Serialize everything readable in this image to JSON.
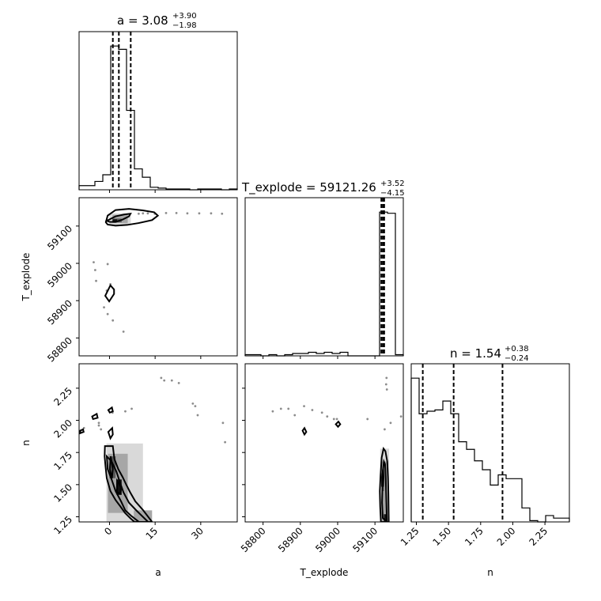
{
  "chart_data": {
    "type": "corner",
    "parameters": [
      "a",
      "T_explode",
      "n"
    ],
    "axis_labels": {
      "a": "a",
      "T_explode": "T_explode",
      "n": "n"
    },
    "titles": {
      "a": {
        "lead": "a = 3.08",
        "sup": "+3.90",
        "sub": "−1.98"
      },
      "T_explode": {
        "lead": "T_explode = 59121.26",
        "sup": "+3.52",
        "sub": "−4.15"
      },
      "n": {
        "lead": "n = 1.54",
        "sup": "+0.38",
        "sub": "−0.24"
      }
    },
    "ranges": {
      "a": [
        -10,
        42
      ],
      "T_explode": [
        58752,
        59176
      ],
      "n": [
        1.21,
        2.44
      ]
    },
    "ticks": {
      "a": {
        "values": [
          0,
          15,
          30
        ],
        "labels": [
          "0",
          "15",
          "30"
        ]
      },
      "T_explode": {
        "values": [
          58800,
          58900,
          59000,
          59100
        ],
        "labels": [
          "58800",
          "58900",
          "59000",
          "59100"
        ]
      },
      "n": {
        "values": [
          1.25,
          1.5,
          1.75,
          2.0,
          2.25
        ],
        "labels": [
          "1.25",
          "1.50",
          "1.75",
          "2.00",
          "2.25"
        ]
      }
    },
    "quantiles": {
      "a": [
        1.1,
        3.08,
        6.98
      ],
      "T_explode": [
        59117.11,
        59121.26,
        59124.78
      ],
      "n": [
        1.3,
        1.54,
        1.92
      ]
    },
    "histograms": {
      "a": {
        "edges": [
          -10,
          -7.4,
          -4.8,
          -2.2,
          0.4,
          3.0,
          5.6,
          8.2,
          10.8,
          13.4,
          16.0,
          18.6,
          21.2,
          23.8,
          26.4,
          29.0,
          31.6,
          34.2,
          36.8,
          39.4,
          42.0
        ],
        "counts": [
          5,
          5,
          10,
          18,
          172,
          168,
          95,
          25,
          15,
          3,
          2,
          1,
          1,
          1,
          0,
          1,
          1,
          1,
          0,
          1
        ]
      },
      "T_explode": {
        "edges": [
          58752,
          58773.2,
          58794.4,
          58815.6,
          58836.8,
          58858,
          58879.2,
          58900.4,
          58921.6,
          58942.8,
          58964,
          58985.2,
          59006.4,
          59027.6,
          59048.8,
          59070,
          59091.2,
          59112.4,
          59133.6,
          59154.8,
          59176
        ],
        "counts": [
          2,
          2,
          0,
          2,
          0,
          2,
          4,
          4,
          6,
          4,
          6,
          4,
          6,
          0,
          0,
          0,
          0,
          244,
          242,
          2
        ]
      },
      "n": {
        "edges": [
          1.21,
          1.2715,
          1.333,
          1.3945,
          1.456,
          1.5175,
          1.579,
          1.6405,
          1.702,
          1.7635,
          1.825,
          1.8865,
          1.948,
          2.0095,
          2.071,
          2.1325,
          2.194,
          2.2555,
          2.317,
          2.3785,
          2.44
        ],
        "counts": [
          113,
          85,
          87,
          88,
          95,
          85,
          63,
          57,
          48,
          41,
          29,
          37,
          34,
          34,
          11,
          1,
          0,
          5,
          3,
          3
        ]
      }
    },
    "scatter": {
      "T_explode_vs_a": [
        [
          -5.2,
          59003
        ],
        [
          -4.7,
          58982
        ],
        [
          -4.4,
          58953
        ],
        [
          -0.6,
          58998
        ],
        [
          0.3,
          58944
        ],
        [
          1.1,
          58847
        ],
        [
          -0.9,
          58927
        ],
        [
          -1.8,
          58882
        ],
        [
          -0.6,
          58864
        ],
        [
          4.6,
          58817
        ],
        [
          11.0,
          59134
        ],
        [
          14.9,
          59133
        ],
        [
          18.6,
          59135
        ],
        [
          22.0,
          59135
        ],
        [
          25.6,
          59134
        ],
        [
          29.5,
          59134
        ],
        [
          33.4,
          59134
        ],
        [
          37.0,
          59133
        ],
        [
          9.6,
          59133
        ],
        [
          12.6,
          59134
        ]
      ],
      "n_vs_a": [
        [
          -3.5,
          1.98
        ],
        [
          -3.5,
          1.96
        ],
        [
          -2.8,
          1.93
        ],
        [
          1.0,
          2.06
        ],
        [
          5.2,
          2.07
        ],
        [
          7.3,
          2.09
        ],
        [
          17.0,
          2.33
        ],
        [
          18.0,
          2.31
        ],
        [
          20.5,
          2.31
        ],
        [
          22.8,
          2.29
        ],
        [
          27.4,
          2.13
        ],
        [
          28.2,
          2.11
        ],
        [
          29.0,
          2.04
        ],
        [
          37.3,
          1.98
        ],
        [
          38.0,
          1.83
        ],
        [
          -8.4,
          1.94
        ]
      ],
      "n_vs_T_explode": [
        [
          58826,
          2.07
        ],
        [
          58848,
          2.09
        ],
        [
          58868,
          2.09
        ],
        [
          58885,
          2.04
        ],
        [
          58910,
          2.11
        ],
        [
          58932,
          2.08
        ],
        [
          58958,
          2.06
        ],
        [
          58972,
          2.03
        ],
        [
          58990,
          2.01
        ],
        [
          58998,
          2.01
        ],
        [
          59130,
          2.28
        ],
        [
          59131,
          2.33
        ],
        [
          59132,
          2.24
        ],
        [
          59126,
          1.93
        ],
        [
          59170,
          2.03
        ],
        [
          59080,
          2.01
        ],
        [
          59142,
          1.98
        ]
      ]
    },
    "contours": {
      "T_explode_vs_a": [
        {
          "level": "outer",
          "points": [
            [
              -1.2,
              59110
            ],
            [
              -0.6,
              59128
            ],
            [
              2.0,
              59143
            ],
            [
              6.4,
              59146
            ],
            [
              10.9,
              59142
            ],
            [
              14.7,
              59137
            ],
            [
              15.9,
              59128
            ],
            [
              14.0,
              59116
            ],
            [
              9.6,
              59108
            ],
            [
              5.8,
              59103
            ],
            [
              2.0,
              59101
            ],
            [
              -0.6,
              59104
            ]
          ]
        },
        {
          "level": "inner",
          "points": [
            [
              -0.9,
              59114
            ],
            [
              2.0,
              59126
            ],
            [
              4.8,
              59131
            ],
            [
              6.9,
              59133
            ],
            [
              6.4,
              59126
            ],
            [
              4.2,
              59117
            ],
            [
              2.0,
              59111
            ],
            [
              0.1,
              59111
            ]
          ]
        },
        {
          "level": "island",
          "points": [
            [
              -1.4,
              58913
            ],
            [
              0.3,
              58941
            ],
            [
              1.5,
              58930
            ],
            [
              1.5,
              58918
            ],
            [
              -0.1,
              58898
            ]
          ]
        }
      ],
      "n_vs_a": [
        {
          "level": "outer",
          "points": [
            [
              -1.5,
              1.8
            ],
            [
              -1.6,
              1.72
            ],
            [
              -1.3,
              1.64
            ],
            [
              -0.9,
              1.55
            ],
            [
              0.3,
              1.45
            ],
            [
              2.0,
              1.38
            ],
            [
              3.6,
              1.33
            ],
            [
              5.1,
              1.28
            ],
            [
              6.8,
              1.24
            ],
            [
              8.2,
              1.21
            ],
            [
              14.0,
              1.21
            ],
            [
              11.1,
              1.3
            ],
            [
              8.5,
              1.37
            ],
            [
              6.8,
              1.44
            ],
            [
              5.5,
              1.5
            ],
            [
              4.3,
              1.56
            ],
            [
              2.9,
              1.62
            ],
            [
              1.6,
              1.7
            ],
            [
              1.1,
              1.8
            ]
          ]
        },
        {
          "level": "inner",
          "points": [
            [
              -0.9,
              1.72
            ],
            [
              -0.6,
              1.62
            ],
            [
              0.7,
              1.54
            ],
            [
              2.0,
              1.45
            ],
            [
              3.8,
              1.37
            ],
            [
              5.2,
              1.3
            ],
            [
              7.0,
              1.26
            ],
            [
              9.7,
              1.21
            ],
            [
              12.7,
              1.21
            ],
            [
              8.8,
              1.3
            ],
            [
              6.4,
              1.36
            ],
            [
              4.6,
              1.44
            ],
            [
              3.4,
              1.52
            ],
            [
              2.3,
              1.6
            ],
            [
              0.7,
              1.68
            ]
          ]
        },
        {
          "level": "core1",
          "points": [
            [
              0.1,
              1.62
            ],
            [
              0.4,
              1.72
            ],
            [
              1.1,
              1.62
            ],
            [
              0.8,
              1.55
            ]
          ]
        },
        {
          "level": "core2",
          "points": [
            [
              2.4,
              1.44
            ],
            [
              2.5,
              1.53
            ],
            [
              3.8,
              1.48
            ],
            [
              3.6,
              1.43
            ]
          ]
        },
        {
          "level": "small1",
          "points": [
            [
              -0.4,
              1.91
            ],
            [
              0.9,
              1.94
            ],
            [
              1.1,
              1.89
            ],
            [
              0.3,
              1.86
            ]
          ]
        },
        {
          "level": "small2",
          "points": [
            [
              -0.4,
              2.08
            ],
            [
              0.8,
              2.1
            ],
            [
              1.1,
              2.07
            ],
            [
              0.1,
              2.06
            ]
          ]
        },
        {
          "level": "small3",
          "points": [
            [
              -5.7,
              2.03
            ],
            [
              -4.2,
              2.05
            ],
            [
              -3.9,
              2.02
            ],
            [
              -5.4,
              2.01
            ]
          ]
        },
        {
          "level": "small4",
          "points": [
            [
              -9.6,
              1.92
            ],
            [
              -8.7,
              1.93
            ],
            [
              -8.5,
              1.91
            ],
            [
              -9.6,
              1.9
            ]
          ]
        }
      ],
      "n_vs_T_explode": [
        {
          "level": "outer",
          "points": [
            [
              59116,
              1.21
            ],
            [
              59114,
              1.33
            ],
            [
              59113,
              1.45
            ],
            [
              59115,
              1.57
            ],
            [
              59118,
              1.71
            ],
            [
              59123,
              1.78
            ],
            [
              59128,
              1.76
            ],
            [
              59133,
              1.68
            ],
            [
              59135,
              1.55
            ],
            [
              59136,
              1.43
            ],
            [
              59137,
              1.21
            ]
          ]
        },
        {
          "level": "inner",
          "points": [
            [
              59121,
              1.24
            ],
            [
              59119,
              1.36
            ],
            [
              59120,
              1.48
            ],
            [
              59121,
              1.6
            ],
            [
              59124,
              1.68
            ],
            [
              59127,
              1.66
            ],
            [
              59129,
              1.55
            ],
            [
              59130,
              1.43
            ],
            [
              59132,
              1.21
            ]
          ]
        },
        {
          "level": "core",
          "points": [
            [
              59119,
              1.49
            ],
            [
              59119,
              1.56
            ],
            [
              59122,
              1.62
            ],
            [
              59123,
              1.56
            ],
            [
              59122,
              1.49
            ]
          ]
        },
        {
          "level": "small1",
          "points": [
            [
              58906,
              1.92
            ],
            [
              58911,
              1.94
            ],
            [
              58916,
              1.91
            ],
            [
              58911,
              1.89
            ]
          ]
        },
        {
          "level": "small2",
          "points": [
            [
              58995,
              1.97
            ],
            [
              59002,
              1.99
            ],
            [
              59007,
              1.97
            ],
            [
              59001,
              1.95
            ]
          ]
        }
      ]
    },
    "density_blobs": {
      "T_explode_vs_a": [
        {
          "x": [
            0.0,
            7.0
          ],
          "y": [
            59103,
            59134
          ],
          "shade": "blob1"
        },
        {
          "x": [
            1.0,
            6.0
          ],
          "y": [
            59108,
            59130
          ],
          "shade": "blob2"
        },
        {
          "x": [
            1.0,
            4.0
          ],
          "y": [
            59110,
            59120
          ],
          "shade": "blob3"
        },
        {
          "x": [
            1.0,
            2.5
          ],
          "y": [
            59112,
            59118
          ],
          "shade": "blob4"
        }
      ],
      "n_vs_a": [
        {
          "x": [
            -1.0,
            11.0
          ],
          "y": [
            1.21,
            1.82
          ],
          "shade": "blob1"
        },
        {
          "x": [
            -0.5,
            6.0
          ],
          "y": [
            1.28,
            1.74
          ],
          "shade": "blob2"
        },
        {
          "x": [
            0.0,
            2.0
          ],
          "y": [
            1.55,
            1.72
          ],
          "shade": "blob3"
        },
        {
          "x": [
            2.3,
            4.0
          ],
          "y": [
            1.42,
            1.54
          ],
          "shade": "blob4"
        },
        {
          "x": [
            8.0,
            14.0
          ],
          "y": [
            1.21,
            1.3
          ],
          "shade": "blob2"
        }
      ],
      "n_vs_T_explode": [
        {
          "x": [
            59114,
            59138
          ],
          "y": [
            1.21,
            1.78
          ],
          "shade": "blob1"
        },
        {
          "x": [
            59118,
            59131
          ],
          "y": [
            1.21,
            1.68
          ],
          "shade": "blob2"
        },
        {
          "x": [
            59119,
            59124
          ],
          "y": [
            1.45,
            1.62
          ],
          "shade": "blob3"
        },
        {
          "x": [
            59124,
            59132
          ],
          "y": [
            1.21,
            1.27
          ],
          "shade": "blob4"
        }
      ]
    }
  }
}
